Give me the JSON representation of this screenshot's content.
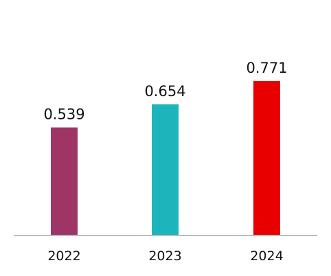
{
  "chart_data": {
    "type": "bar",
    "categories": [
      "2022",
      "2023",
      "2024"
    ],
    "values": [
      0.539,
      0.654,
      0.771
    ],
    "value_labels": [
      "0.539",
      "0.654",
      "0.771"
    ],
    "colors": [
      "#9E3566",
      "#1CB5BB",
      "#E80000"
    ],
    "axis_color": "#BBBBBB",
    "ylim": [
      0,
      1
    ]
  }
}
